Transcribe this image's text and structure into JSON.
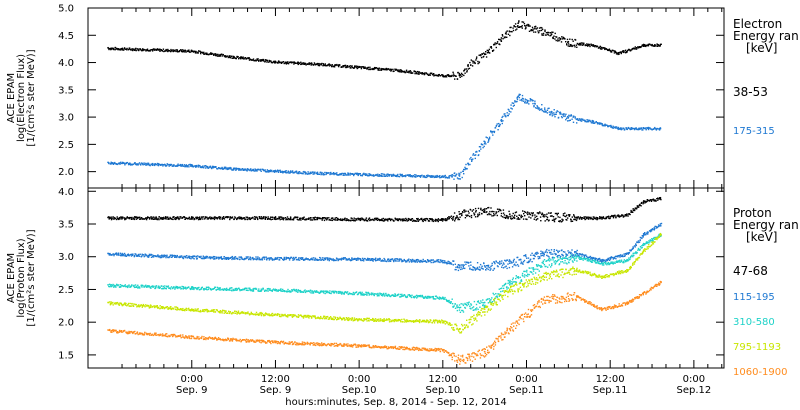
{
  "chart_data": [
    {
      "type": "scatter",
      "panel": "electron",
      "ylabel": [
        "ACE EPAM",
        "log(Electron Flux)",
        "[1/(cm²s ster MeV)]"
      ],
      "ylim": [
        1.7,
        5.0
      ],
      "yticks": [
        "2.0",
        "2.5",
        "3.0",
        "3.5",
        "4.0",
        "4.5",
        "5.0"
      ],
      "legend_title": [
        "Electron",
        "Energy ran",
        "[keV]"
      ],
      "series": [
        {
          "name": "38-53",
          "color": "#000000",
          "x": [
            -0.5,
            0,
            0.25,
            0.5,
            0.75,
            1.0,
            1.25,
            1.5,
            1.6,
            1.65,
            1.75,
            1.85,
            1.95,
            2.05,
            2.15,
            2.25,
            2.4,
            2.55,
            2.7,
            2.8
          ],
          "y": [
            4.27,
            4.22,
            4.11,
            4.02,
            3.98,
            3.92,
            3.86,
            3.77,
            3.76,
            3.95,
            4.15,
            4.45,
            4.72,
            4.62,
            4.52,
            4.38,
            4.32,
            4.18,
            4.33,
            4.33
          ]
        },
        {
          "name": "175-315",
          "color": "#1e78d2",
          "x": [
            -0.5,
            0,
            0.25,
            0.5,
            0.75,
            1.0,
            1.25,
            1.5,
            1.6,
            1.65,
            1.75,
            1.85,
            1.95,
            2.05,
            2.15,
            2.25,
            2.4,
            2.55,
            2.7,
            2.8
          ],
          "y": [
            2.17,
            2.12,
            2.06,
            2.02,
            1.98,
            1.96,
            1.94,
            1.92,
            1.92,
            2.15,
            2.55,
            2.95,
            3.38,
            3.25,
            3.1,
            3.0,
            2.92,
            2.8,
            2.8,
            2.8
          ]
        }
      ]
    },
    {
      "type": "scatter",
      "panel": "proton",
      "ylabel": [
        "ACE EPAM",
        "log(Proton Flux)",
        "[1/(cm²s ster MeV)]"
      ],
      "ylim": [
        1.3,
        4.05
      ],
      "yticks": [
        "1.5",
        "2.0",
        "2.5",
        "3.0",
        "3.5",
        "4.0"
      ],
      "legend_title": [
        "Proton",
        "Energy ran",
        "[keV]"
      ],
      "series": [
        {
          "name": "47-68",
          "color": "#000000",
          "x": [
            -0.5,
            0,
            0.5,
            1.0,
            1.5,
            1.6,
            1.75,
            1.9,
            2.1,
            2.3,
            2.45,
            2.6,
            2.7,
            2.8
          ],
          "y": [
            3.6,
            3.6,
            3.6,
            3.58,
            3.57,
            3.65,
            3.7,
            3.65,
            3.62,
            3.6,
            3.6,
            3.65,
            3.85,
            3.9
          ]
        },
        {
          "name": "115-195",
          "color": "#1e78d2",
          "x": [
            -0.5,
            0,
            0.5,
            1.0,
            1.5,
            1.6,
            1.75,
            1.9,
            2.1,
            2.3,
            2.45,
            2.6,
            2.7,
            2.8
          ],
          "y": [
            3.05,
            3.0,
            2.98,
            2.97,
            2.94,
            2.86,
            2.86,
            2.9,
            3.05,
            3.05,
            2.95,
            3.05,
            3.35,
            3.5
          ]
        },
        {
          "name": "310-580",
          "color": "#1ed2c8",
          "x": [
            -0.5,
            0,
            0.5,
            1.0,
            1.5,
            1.6,
            1.75,
            1.9,
            2.1,
            2.3,
            2.45,
            2.6,
            2.7,
            2.8
          ],
          "y": [
            2.57,
            2.53,
            2.5,
            2.45,
            2.38,
            2.22,
            2.3,
            2.6,
            2.9,
            3.0,
            2.9,
            2.95,
            3.2,
            3.35
          ]
        },
        {
          "name": "795-1193",
          "color": "#c8e600",
          "x": [
            -0.5,
            0,
            0.5,
            1.0,
            1.5,
            1.6,
            1.75,
            1.9,
            2.1,
            2.3,
            2.45,
            2.6,
            2.7,
            2.8
          ],
          "y": [
            2.3,
            2.2,
            2.12,
            2.05,
            2.02,
            1.9,
            2.2,
            2.5,
            2.7,
            2.8,
            2.7,
            2.8,
            3.1,
            3.35
          ]
        },
        {
          "name": "1060-1900",
          "color": "#ff8c1e",
          "x": [
            -0.5,
            0,
            0.5,
            1.0,
            1.5,
            1.6,
            1.75,
            1.9,
            2.1,
            2.3,
            2.45,
            2.6,
            2.7,
            2.8
          ],
          "y": [
            1.88,
            1.78,
            1.7,
            1.65,
            1.58,
            1.42,
            1.55,
            1.9,
            2.35,
            2.4,
            2.2,
            2.3,
            2.45,
            2.62
          ]
        }
      ]
    }
  ],
  "x_axis": {
    "xlim": [
      -0.62,
      3.18
    ],
    "tick_values": [
      0,
      0.5,
      1,
      1.5,
      2,
      2.5,
      3
    ],
    "tick_labels": [
      [
        "0:00",
        "Sep. 9"
      ],
      [
        "12:00",
        "Sep. 9"
      ],
      [
        "0:00",
        "Sep.10"
      ],
      [
        "12:00",
        "Sep.10"
      ],
      [
        "0:00",
        "Sep.11"
      ],
      [
        "12:00",
        "Sep.11"
      ],
      [
        "0:00",
        "Sep.12"
      ]
    ],
    "xlabel": "hours:minutes, Sep.  8, 2014 - Sep. 12, 2014"
  }
}
